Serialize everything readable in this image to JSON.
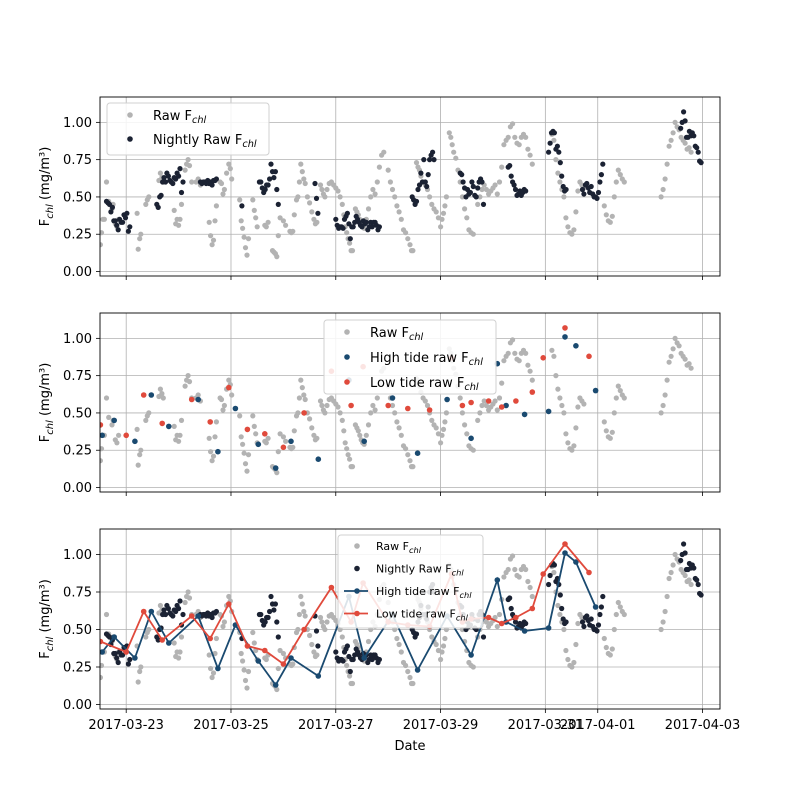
{
  "colors": {
    "raw": "#b3b3b3",
    "nightly": "#1b2233",
    "high_tide": "#1a4a70",
    "low_tide": "#e04a3c",
    "grid": "#b0b0b0"
  },
  "xlabel": "Date",
  "ylabel_main": "F",
  "ylabel_sub": "chl",
  "ylabel_unit": " (mg/m³)",
  "chart_data": [
    {
      "type": "scatter",
      "xlim": [
        "2017-03-22T12:00",
        "2017-04-03T08:00"
      ],
      "ylim": [
        -0.03,
        1.17
      ],
      "yticks": [
        "0.00",
        "0.25",
        "0.50",
        "0.75",
        "1.00"
      ],
      "xtick_labels": [],
      "grid": true,
      "legend_placement": "upper-left",
      "legend": [
        {
          "main": "Raw F",
          "sub": "chl",
          "series": "raw"
        },
        {
          "main": "Nightly Raw F",
          "sub": "chl",
          "series": "nightly"
        }
      ],
      "series": [
        {
          "key": "raw",
          "name": "Raw Fchl"
        },
        {
          "key": "nightly",
          "name": "Nightly Raw Fchl"
        }
      ]
    },
    {
      "type": "scatter",
      "xlim": [
        "2017-03-22T12:00",
        "2017-04-03T08:00"
      ],
      "ylim": [
        -0.03,
        1.17
      ],
      "yticks": [
        "0.00",
        "0.25",
        "0.50",
        "0.75",
        "1.00"
      ],
      "xtick_labels": [],
      "grid": true,
      "legend_placement": "upper-center",
      "legend": [
        {
          "main": "Raw F",
          "sub": "chl",
          "series": "raw"
        },
        {
          "main": "High tide raw F",
          "sub": "chl",
          "series": "high"
        },
        {
          "main": "Low tide raw F",
          "sub": "chl",
          "series": "low"
        }
      ],
      "series": [
        {
          "key": "raw",
          "name": "Raw Fchl"
        },
        {
          "key": "high",
          "name": "High tide raw Fchl"
        },
        {
          "key": "low",
          "name": "Low tide raw Fchl"
        }
      ]
    },
    {
      "type": "line",
      "xlim": [
        "2017-03-22T12:00",
        "2017-04-03T08:00"
      ],
      "ylim": [
        -0.03,
        1.17
      ],
      "yticks": [
        "0.00",
        "0.25",
        "0.50",
        "0.75",
        "1.00"
      ],
      "xtick_labels": [
        "2017-03-23",
        "2017-03-25",
        "2017-03-27",
        "2017-03-29",
        "2017-03-31",
        "2017-04-01",
        "2017-04-03"
      ],
      "grid": true,
      "legend_placement": "upper-center",
      "legend": [
        {
          "main": "Raw F",
          "sub": "chl",
          "series": "raw"
        },
        {
          "main": "Nightly Raw F",
          "sub": "chl",
          "series": "nightly"
        },
        {
          "main": "High tide raw F",
          "sub": "chl",
          "series": "high",
          "line": true
        },
        {
          "main": "Low tide raw F",
          "sub": "chl",
          "series": "low",
          "line": true
        }
      ],
      "series": [
        {
          "key": "raw",
          "name": "Raw Fchl"
        },
        {
          "key": "nightly",
          "name": "Nightly Raw Fchl"
        },
        {
          "key": "high",
          "name": "High tide raw Fchl"
        },
        {
          "key": "low",
          "name": "Low tide raw Fchl"
        }
      ]
    }
  ],
  "shared_series": {
    "raw": [
      [
        "2017-03-22T12:10",
        0.18
      ],
      [
        "2017-03-22T12:40",
        0.26
      ],
      [
        "2017-03-22T13:20",
        0.35
      ],
      [
        "2017-03-22T14:00",
        0.35
      ],
      [
        "2017-03-22T15:00",
        0.6
      ],
      [
        "2017-03-22T16:00",
        0.47
      ],
      [
        "2017-03-22T17:30",
        0.42
      ],
      [
        "2017-03-22T18:00",
        0.45
      ],
      [
        "2017-03-22T19:00",
        0.32
      ],
      [
        "2017-03-22T19:45",
        0.3
      ],
      [
        "2017-03-22T20:30",
        0.35
      ],
      [
        "2017-03-23T05:00",
        0.39
      ],
      [
        "2017-03-23T05:30",
        0.15
      ],
      [
        "2017-03-23T06:10",
        0.22
      ],
      [
        "2017-03-23T06:40",
        0.25
      ],
      [
        "2017-03-23T09:00",
        0.45
      ],
      [
        "2017-03-23T09:40",
        0.48
      ],
      [
        "2017-03-23T10:20",
        0.5
      ],
      [
        "2017-03-23T15:00",
        0.61
      ],
      [
        "2017-03-23T15:40",
        0.66
      ],
      [
        "2017-03-23T16:20",
        0.63
      ],
      [
        "2017-03-23T17:00",
        0.6
      ],
      [
        "2017-03-23T22:00",
        0.41
      ],
      [
        "2017-03-23T22:40",
        0.32
      ],
      [
        "2017-03-23T23:20",
        0.35
      ],
      [
        "2017-03-24T00:00",
        0.31
      ],
      [
        "2017-03-24T00:40",
        0.35
      ],
      [
        "2017-03-24T01:20",
        0.45
      ],
      [
        "2017-03-24T03:00",
        0.68
      ],
      [
        "2017-03-24T03:40",
        0.72
      ],
      [
        "2017-03-24T04:20",
        0.75
      ],
      [
        "2017-03-24T05:00",
        0.71
      ],
      [
        "2017-03-24T06:00",
        0.6
      ],
      [
        "2017-03-24T08:00",
        0.6
      ],
      [
        "2017-03-24T09:00",
        0.62
      ],
      [
        "2017-03-24T10:00",
        0.58
      ],
      [
        "2017-03-24T14:00",
        0.33
      ],
      [
        "2017-03-24T14:40",
        0.24
      ],
      [
        "2017-03-24T15:20",
        0.18
      ],
      [
        "2017-03-24T16:00",
        0.21
      ],
      [
        "2017-03-24T16:40",
        0.34
      ],
      [
        "2017-03-24T17:20",
        0.44
      ],
      [
        "2017-03-24T19:00",
        0.6
      ],
      [
        "2017-03-24T19:40",
        0.59
      ],
      [
        "2017-03-24T20:20",
        0.52
      ],
      [
        "2017-03-24T21:00",
        0.55
      ],
      [
        "2017-03-24T22:00",
        0.66
      ],
      [
        "2017-03-24T23:00",
        0.72
      ],
      [
        "2017-03-24T23:40",
        0.69
      ],
      [
        "2017-03-25T00:20",
        0.62
      ],
      [
        "2017-03-25T04:00",
        0.48
      ],
      [
        "2017-03-25T04:40",
        0.34
      ],
      [
        "2017-03-25T05:20",
        0.29
      ],
      [
        "2017-03-25T06:00",
        0.23
      ],
      [
        "2017-03-25T06:40",
        0.16
      ],
      [
        "2017-03-25T07:20",
        0.11
      ],
      [
        "2017-03-25T08:00",
        0.22
      ],
      [
        "2017-03-25T10:00",
        0.48
      ],
      [
        "2017-03-25T10:40",
        0.41
      ],
      [
        "2017-03-25T11:20",
        0.36
      ],
      [
        "2017-03-25T12:00",
        0.3
      ],
      [
        "2017-03-25T15:30",
        0.31
      ],
      [
        "2017-03-25T16:10",
        0.3
      ],
      [
        "2017-03-25T17:00",
        0.33
      ],
      [
        "2017-03-25T19:00",
        0.14
      ],
      [
        "2017-03-25T19:40",
        0.13
      ],
      [
        "2017-03-25T20:20",
        0.12
      ],
      [
        "2017-03-25T21:00",
        0.1
      ],
      [
        "2017-03-25T21:40",
        0.24
      ],
      [
        "2017-03-25T22:30",
        0.36
      ],
      [
        "2017-03-26T00:00",
        0.34
      ],
      [
        "2017-03-26T01:00",
        0.31
      ],
      [
        "2017-03-26T03:00",
        0.27
      ],
      [
        "2017-03-26T03:40",
        0.26
      ],
      [
        "2017-03-26T04:20",
        0.27
      ],
      [
        "2017-03-26T05:00",
        0.38
      ],
      [
        "2017-03-26T06:00",
        0.48
      ],
      [
        "2017-03-26T06:40",
        0.5
      ],
      [
        "2017-03-26T07:20",
        0.6
      ],
      [
        "2017-03-26T08:00",
        0.72
      ],
      [
        "2017-03-26T08:40",
        0.67
      ],
      [
        "2017-03-26T09:20",
        0.62
      ],
      [
        "2017-03-26T10:00",
        0.59
      ],
      [
        "2017-03-26T11:00",
        0.5
      ],
      [
        "2017-03-26T12:00",
        0.46
      ],
      [
        "2017-03-26T13:00",
        0.4
      ],
      [
        "2017-03-26T14:00",
        0.35
      ],
      [
        "2017-03-26T14:40",
        0.32
      ],
      [
        "2017-03-26T15:20",
        0.33
      ],
      [
        "2017-03-26T17:00",
        0.58
      ],
      [
        "2017-03-26T17:40",
        0.55
      ],
      [
        "2017-03-26T18:20",
        0.52
      ],
      [
        "2017-03-26T19:00",
        0.5
      ],
      [
        "2017-03-26T20:00",
        0.55
      ],
      [
        "2017-03-26T21:00",
        0.59
      ],
      [
        "2017-03-26T22:00",
        0.6
      ],
      [
        "2017-03-26T23:00",
        0.58
      ],
      [
        "2017-03-27T00:00",
        0.56
      ],
      [
        "2017-03-27T01:00",
        0.54
      ],
      [
        "2017-03-27T02:00",
        0.5
      ],
      [
        "2017-03-27T03:00",
        0.45
      ],
      [
        "2017-03-27T03:40",
        0.38
      ],
      [
        "2017-03-27T04:20",
        0.3
      ],
      [
        "2017-03-27T05:00",
        0.26
      ],
      [
        "2017-03-27T05:40",
        0.22
      ],
      [
        "2017-03-27T06:20",
        0.19
      ],
      [
        "2017-03-27T07:00",
        0.14
      ],
      [
        "2017-03-27T07:40",
        0.14
      ],
      [
        "2017-03-27T09:00",
        0.42
      ],
      [
        "2017-03-27T09:40",
        0.4
      ],
      [
        "2017-03-27T10:20",
        0.38
      ],
      [
        "2017-03-27T11:00",
        0.35
      ],
      [
        "2017-03-27T11:40",
        0.32
      ],
      [
        "2017-03-27T12:20",
        0.3
      ],
      [
        "2017-03-27T13:00",
        0.29
      ],
      [
        "2017-03-27T14:00",
        0.35
      ],
      [
        "2017-03-27T15:00",
        0.42
      ],
      [
        "2017-03-27T16:00",
        0.5
      ],
      [
        "2017-03-27T17:00",
        0.55
      ],
      [
        "2017-03-27T18:00",
        0.52
      ],
      [
        "2017-03-27T19:00",
        0.6
      ],
      [
        "2017-03-27T20:00",
        0.7
      ],
      [
        "2017-03-27T21:00",
        0.78
      ],
      [
        "2017-03-27T22:00",
        0.8
      ],
      [
        "2017-03-28T00:00",
        0.68
      ],
      [
        "2017-03-28T01:00",
        0.6
      ],
      [
        "2017-03-28T02:00",
        0.55
      ],
      [
        "2017-03-28T03:00",
        0.5
      ],
      [
        "2017-03-28T04:00",
        0.44
      ],
      [
        "2017-03-28T05:00",
        0.4
      ],
      [
        "2017-03-28T06:00",
        0.35
      ],
      [
        "2017-03-28T07:00",
        0.28
      ],
      [
        "2017-03-28T08:00",
        0.26
      ],
      [
        "2017-03-28T09:00",
        0.22
      ],
      [
        "2017-03-28T10:00",
        0.18
      ],
      [
        "2017-03-28T10:40",
        0.14
      ],
      [
        "2017-03-28T11:20",
        0.14
      ],
      [
        "2017-03-28T13:00",
        0.73
      ],
      [
        "2017-03-28T13:40",
        0.7
      ],
      [
        "2017-03-28T14:20",
        0.68
      ],
      [
        "2017-03-28T15:00",
        0.64
      ],
      [
        "2017-03-28T16:00",
        0.6
      ],
      [
        "2017-03-28T17:00",
        0.58
      ],
      [
        "2017-03-28T18:00",
        0.55
      ],
      [
        "2017-03-28T19:00",
        0.5
      ],
      [
        "2017-03-28T20:00",
        0.45
      ],
      [
        "2017-03-28T21:00",
        0.42
      ],
      [
        "2017-03-28T22:00",
        0.4
      ],
      [
        "2017-03-28T23:00",
        0.36
      ],
      [
        "2017-03-29T00:00",
        0.3
      ],
      [
        "2017-03-29T00:40",
        0.35
      ],
      [
        "2017-03-29T01:20",
        0.39
      ],
      [
        "2017-03-29T02:00",
        0.44
      ],
      [
        "2017-03-29T02:40",
        0.5
      ],
      [
        "2017-03-29T04:00",
        0.93
      ],
      [
        "2017-03-29T04:40",
        0.9
      ],
      [
        "2017-03-29T05:20",
        0.85
      ],
      [
        "2017-03-29T06:00",
        0.8
      ],
      [
        "2017-03-29T07:00",
        0.76
      ],
      [
        "2017-03-29T08:00",
        0.68
      ],
      [
        "2017-03-29T09:00",
        0.6
      ],
      [
        "2017-03-29T10:00",
        0.5
      ],
      [
        "2017-03-29T11:00",
        0.42
      ],
      [
        "2017-03-29T12:00",
        0.36
      ],
      [
        "2017-03-29T13:00",
        0.28
      ],
      [
        "2017-03-29T14:00",
        0.26
      ],
      [
        "2017-03-29T15:00",
        0.25
      ],
      [
        "2017-03-29T17:00",
        0.45
      ],
      [
        "2017-03-29T18:00",
        0.5
      ],
      [
        "2017-03-29T19:00",
        0.55
      ],
      [
        "2017-03-29T20:00",
        0.58
      ],
      [
        "2017-03-29T21:00",
        0.55
      ],
      [
        "2017-03-29T22:00",
        0.52
      ],
      [
        "2017-03-29T23:00",
        0.54
      ],
      [
        "2017-03-30T00:00",
        0.56
      ],
      [
        "2017-03-30T01:00",
        0.58
      ],
      [
        "2017-03-30T02:00",
        0.52
      ],
      [
        "2017-03-30T03:00",
        0.6
      ],
      [
        "2017-03-30T04:00",
        0.7
      ],
      [
        "2017-03-30T05:00",
        0.85
      ],
      [
        "2017-03-30T06:00",
        0.88
      ],
      [
        "2017-03-30T07:00",
        0.9
      ],
      [
        "2017-03-30T08:00",
        0.97
      ],
      [
        "2017-03-30T09:00",
        0.99
      ],
      [
        "2017-03-30T10:00",
        0.9
      ],
      [
        "2017-03-30T11:00",
        0.86
      ],
      [
        "2017-03-30T12:00",
        0.85
      ],
      [
        "2017-03-30T13:00",
        0.9
      ],
      [
        "2017-03-30T14:00",
        0.92
      ],
      [
        "2017-03-30T15:00",
        0.9
      ],
      [
        "2017-03-30T16:00",
        0.82
      ],
      [
        "2017-03-30T17:00",
        0.78
      ],
      [
        "2017-03-30T18:00",
        0.72
      ]
    ]
  }
}
